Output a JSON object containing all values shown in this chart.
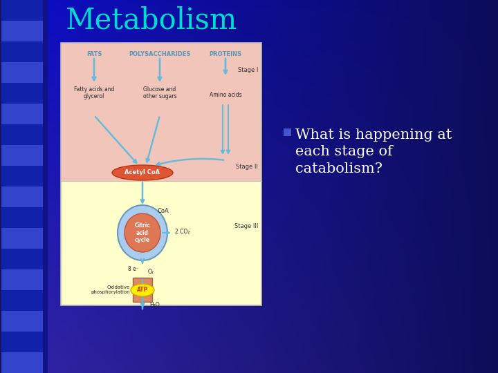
{
  "title": "Metabolism",
  "title_color": "#00DDCC",
  "title_fontsize": 30,
  "bullet_text_line1": "What is happening at",
  "bullet_text_line2": "each stage of",
  "bullet_text_line3": "catabolism?",
  "bullet_color": "#FFFFFF",
  "bullet_marker_color": "#4466CC",
  "diagram_top_bg": "#F2C8C0",
  "diagram_bottom_bg": "#FFFFCC",
  "stage1_label": "Stage I",
  "stage2_label": "Stage II",
  "stage3_label": "Stage III",
  "fats_label": "FATS",
  "polysaccharides_label": "POLYSACCHARIDES",
  "proteins_label": "PROTEINS",
  "fatty_acids_label": "Fatty acids and\nglycerol",
  "glucose_label": "Glucose and\nother sugars",
  "amino_label": "Amino acids",
  "acetyl_label": "Acetyl CoA",
  "coa_label": "CoA",
  "citric_label": "Citric\nacid\ncycle",
  "co2_label": "2 CO₂",
  "electrons_label": "8 e⁻",
  "o2_label": "O₂",
  "oxphos_label": "Oxidative\nphosphorylation",
  "h2o_label": "H₂O",
  "atp_label": "ATP",
  "arrow_color": "#66BBDD",
  "bg_left_color": "#2244CC",
  "bg_right_color": "#000080"
}
